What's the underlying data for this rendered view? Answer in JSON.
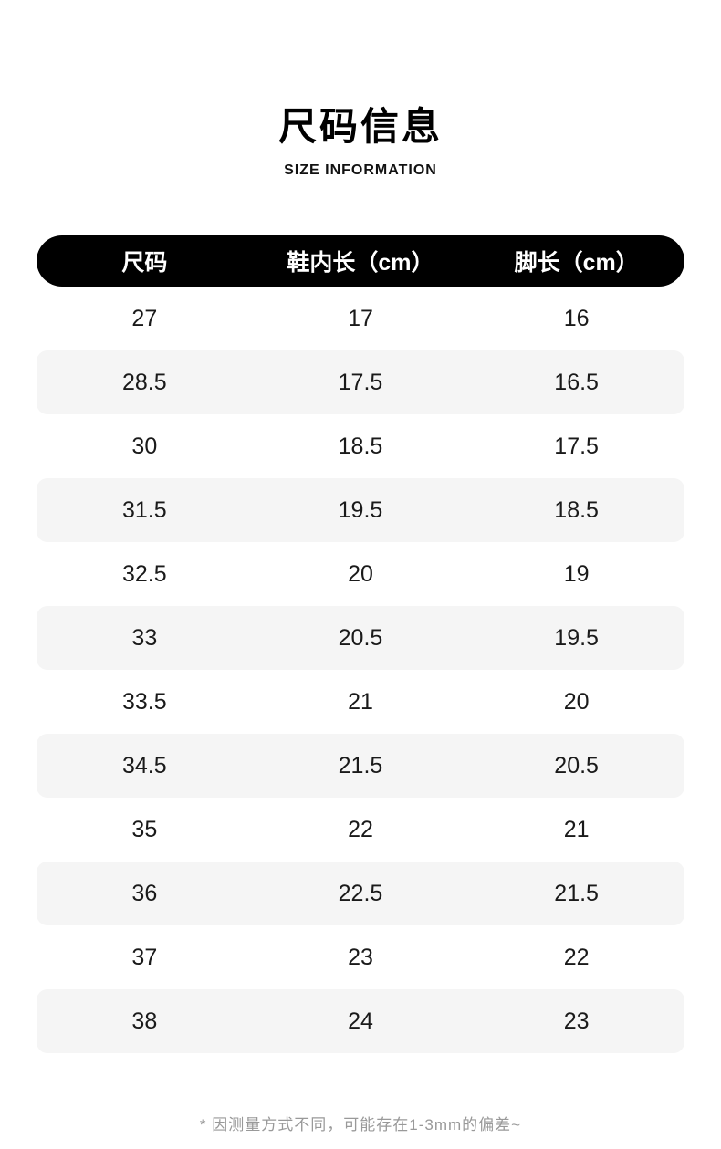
{
  "header": {
    "title": "尺码信息",
    "subtitle": "SIZE INFORMATION"
  },
  "footer": {
    "note": "* 因测量方式不同，可能存在1-3mm的偏差~"
  },
  "colors": {
    "header_bar": "#000000",
    "header_text": "#ffffff",
    "row_alt_background": "#f5f5f5",
    "body_text": "#1a1a1a",
    "note_text": "#999999"
  },
  "chart_data": {
    "type": "table",
    "title": "尺码信息",
    "subtitle": "SIZE INFORMATION",
    "columns": [
      "尺码",
      "鞋内长（cm）",
      "脚长（cm）"
    ],
    "rows": [
      [
        "27",
        "17",
        "16"
      ],
      [
        "28.5",
        "17.5",
        "16.5"
      ],
      [
        "30",
        "18.5",
        "17.5"
      ],
      [
        "31.5",
        "19.5",
        "18.5"
      ],
      [
        "32.5",
        "20",
        "19"
      ],
      [
        "33",
        "20.5",
        "19.5"
      ],
      [
        "33.5",
        "21",
        "20"
      ],
      [
        "34.5",
        "21.5",
        "20.5"
      ],
      [
        "35",
        "22",
        "21"
      ],
      [
        "36",
        "22.5",
        "21.5"
      ],
      [
        "37",
        "23",
        "22"
      ],
      [
        "38",
        "24",
        "23"
      ]
    ],
    "note": "* 因测量方式不同，可能存在1-3mm的偏差~",
    "layout": {
      "striped": true,
      "stripe_pattern": "odd-rows-gray",
      "header_style": "black-pill"
    }
  }
}
